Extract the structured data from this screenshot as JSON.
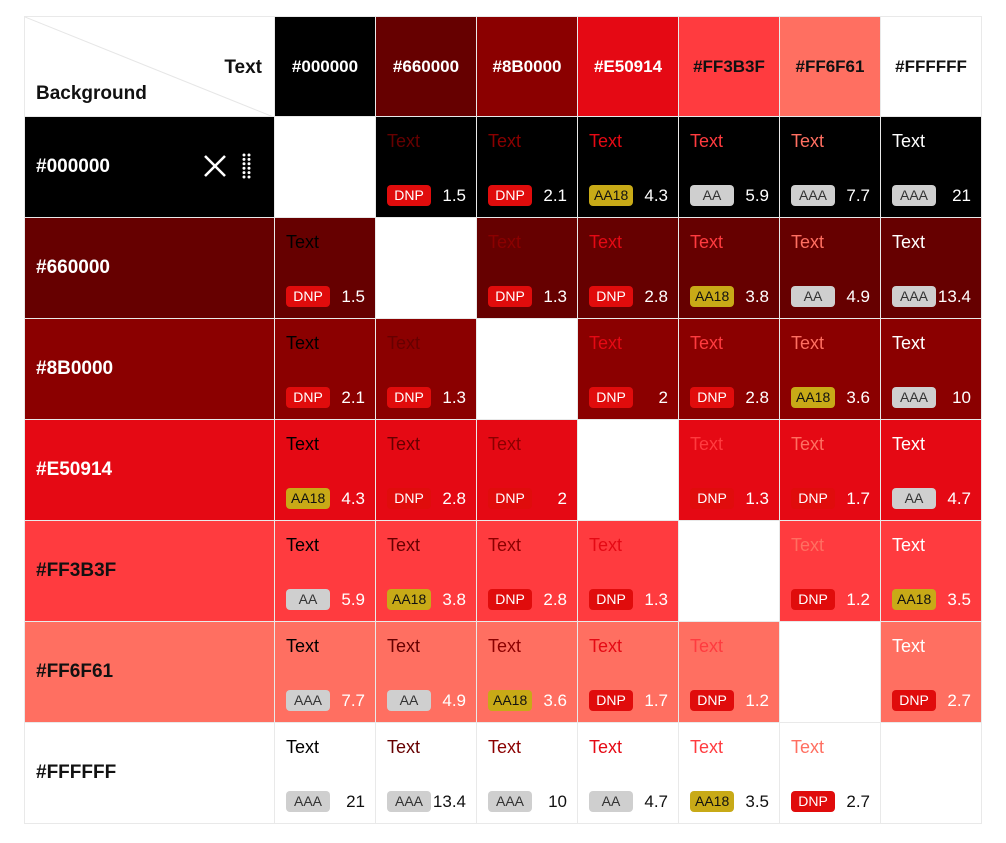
{
  "corner": {
    "text_label": "Text",
    "background_label": "Background"
  },
  "colors": [
    "#000000",
    "#660000",
    "#8B0000",
    "#E50914",
    "#FF3B3F",
    "#FF6F61",
    "#FFFFFF"
  ],
  "column_text_colors": [
    "#FFFFFF",
    "#FFFFFF",
    "#FFFFFF",
    "#FFFFFF",
    "#111111",
    "#111111",
    "#111111"
  ],
  "row_label_colors": [
    "#FFFFFF",
    "#FFFFFF",
    "#FFFFFF",
    "#FFFFFF",
    "#111111",
    "#111111",
    "#111111"
  ],
  "sample_label": "Text",
  "active_row": 0,
  "icons": {
    "remove": "close-icon",
    "drag": "drag-handle-icon"
  },
  "matrix": [
    [
      null,
      {
        "badge": "DNP",
        "ratio": "1.5"
      },
      {
        "badge": "DNP",
        "ratio": "2.1"
      },
      {
        "badge": "AA18",
        "ratio": "4.3"
      },
      {
        "badge": "AA",
        "ratio": "5.9"
      },
      {
        "badge": "AAA",
        "ratio": "7.7"
      },
      {
        "badge": "AAA",
        "ratio": "21"
      }
    ],
    [
      {
        "badge": "DNP",
        "ratio": "1.5"
      },
      null,
      {
        "badge": "DNP",
        "ratio": "1.3"
      },
      {
        "badge": "DNP",
        "ratio": "2.8"
      },
      {
        "badge": "AA18",
        "ratio": "3.8"
      },
      {
        "badge": "AA",
        "ratio": "4.9"
      },
      {
        "badge": "AAA",
        "ratio": "13.4"
      }
    ],
    [
      {
        "badge": "DNP",
        "ratio": "2.1"
      },
      {
        "badge": "DNP",
        "ratio": "1.3"
      },
      null,
      {
        "badge": "DNP",
        "ratio": "2"
      },
      {
        "badge": "DNP",
        "ratio": "2.8"
      },
      {
        "badge": "AA18",
        "ratio": "3.6"
      },
      {
        "badge": "AAA",
        "ratio": "10"
      }
    ],
    [
      {
        "badge": "AA18",
        "ratio": "4.3"
      },
      {
        "badge": "DNP",
        "ratio": "2.8"
      },
      {
        "badge": "DNP",
        "ratio": "2"
      },
      null,
      {
        "badge": "DNP",
        "ratio": "1.3"
      },
      {
        "badge": "DNP",
        "ratio": "1.7"
      },
      {
        "badge": "AA",
        "ratio": "4.7"
      }
    ],
    [
      {
        "badge": "AA",
        "ratio": "5.9"
      },
      {
        "badge": "AA18",
        "ratio": "3.8"
      },
      {
        "badge": "DNP",
        "ratio": "2.8"
      },
      {
        "badge": "DNP",
        "ratio": "1.3"
      },
      null,
      {
        "badge": "DNP",
        "ratio": "1.2"
      },
      {
        "badge": "AA18",
        "ratio": "3.5"
      }
    ],
    [
      {
        "badge": "AAA",
        "ratio": "7.7"
      },
      {
        "badge": "AA",
        "ratio": "4.9"
      },
      {
        "badge": "AA18",
        "ratio": "3.6"
      },
      {
        "badge": "DNP",
        "ratio": "1.7"
      },
      {
        "badge": "DNP",
        "ratio": "1.2"
      },
      null,
      {
        "badge": "DNP",
        "ratio": "2.7"
      }
    ],
    [
      {
        "badge": "AAA",
        "ratio": "21"
      },
      {
        "badge": "AAA",
        "ratio": "13.4"
      },
      {
        "badge": "AAA",
        "ratio": "10"
      },
      {
        "badge": "AA",
        "ratio": "4.7"
      },
      {
        "badge": "AA18",
        "ratio": "3.5"
      },
      {
        "badge": "DNP",
        "ratio": "2.7"
      },
      null
    ]
  ]
}
